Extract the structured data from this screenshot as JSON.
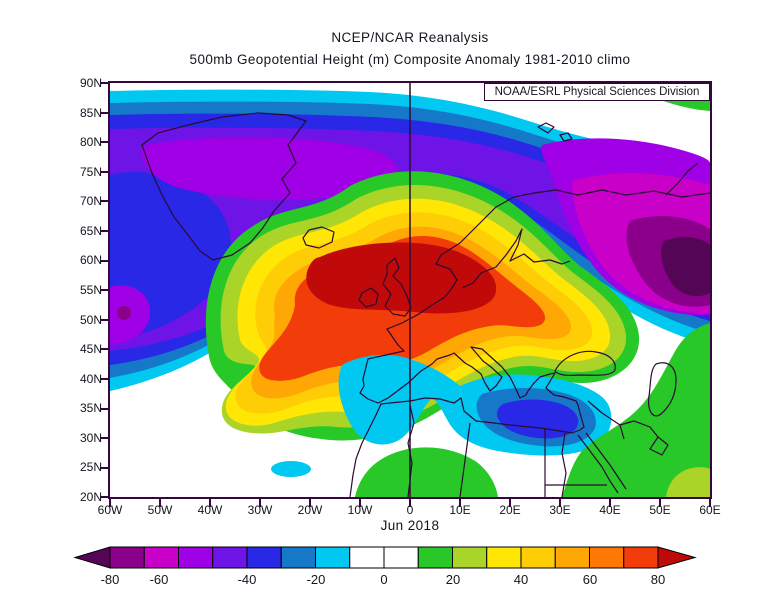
{
  "header": {
    "title": "NCEP/NCAR Reanalysis",
    "subtitle": "500mb Geopotential Height (m) Composite Anomaly 1981-2010 climo",
    "attribution": "NOAA/ESRL Physical Sciences Division"
  },
  "period_label": "Jun 2018",
  "axes": {
    "lat_labels": [
      "90N",
      "85N",
      "80N",
      "75N",
      "70N",
      "65N",
      "60N",
      "55N",
      "50N",
      "45N",
      "40N",
      "35N",
      "30N",
      "25N",
      "20N"
    ],
    "lon_labels": [
      "60W",
      "50W",
      "40W",
      "30W",
      "20W",
      "10W",
      "0",
      "10E",
      "20E",
      "30E",
      "40E",
      "50E",
      "60E"
    ]
  },
  "colorbar": {
    "tick_labels": [
      "-80",
      "-60",
      "-40",
      "-20",
      "0",
      "20",
      "40",
      "60",
      "80"
    ],
    "segment_colors": [
      "#8B008B",
      "#C800C8",
      "#A000E6",
      "#6E14E6",
      "#2828E6",
      "#1678C8",
      "#00C8F0",
      "#FFFFFF",
      "#FFFFFF",
      "#28C828",
      "#AAD428",
      "#FFE605",
      "#FFCD05",
      "#FFA805",
      "#FF7805",
      "#F23C0A"
    ],
    "below_min_color": "#550555",
    "above_max_color": "#C00A0A"
  },
  "chart_data": {
    "type": "filled_contour_map",
    "title": "NCEP/NCAR Reanalysis",
    "subtitle": "500mb Geopotential Height (m) Composite Anomaly 1981-2010 climo",
    "source": "NOAA/ESRL Physical Sciences Division",
    "period": "Jun 2018",
    "variable": "500mb geopotential height composite anomaly",
    "units": "m",
    "climatology": "1981-2010",
    "lat_range_deg": [
      20,
      90
    ],
    "lon_range_deg": [
      -60,
      60
    ],
    "lat_tick_interval_deg": 5,
    "lon_tick_interval_deg": 10,
    "contour_interval_m": 10,
    "color_levels_m": [
      -80,
      -70,
      -60,
      -50,
      -40,
      -30,
      -20,
      -10,
      0,
      10,
      20,
      30,
      40,
      50,
      60,
      70,
      80
    ],
    "palette_low_to_high": [
      "#550555",
      "#8B008B",
      "#C800C8",
      "#A000E6",
      "#6E14E6",
      "#2828E6",
      "#1678C8",
      "#00C8F0",
      "#FFFFFF",
      "#FFFFFF",
      "#28C828",
      "#AAD428",
      "#FFE605",
      "#FFCD05",
      "#FFA805",
      "#FF7805",
      "#F23C0A",
      "#C00A0A"
    ],
    "anomaly_features": [
      {
        "feature": "positive anomaly maximum",
        "approx_location": "55N 8W over British Isles / NE Atlantic",
        "approx_value_m": "> +80"
      },
      {
        "feature": "positive ridge southwest lobe",
        "approx_location": "extends SW to ~30N 25W",
        "approx_value_m": "+10 to +70"
      },
      {
        "feature": "positive ridge east tongue",
        "approx_location": "extends E to ~45N 45E across Baltic/Black Sea region",
        "approx_value_m": "+10 to +40"
      },
      {
        "feature": "negative anomaly band",
        "approx_location": "Arctic belt ~70N-85N spanning full map width",
        "approx_value_m": "-40 to -60"
      },
      {
        "feature": "negative anomaly maximum",
        "approx_location": "~57N 55E near right edge (NW Russia/Urals)",
        "approx_value_m": "< -80"
      },
      {
        "feature": "negative anomaly",
        "approx_location": "~35N 20E central Mediterranean",
        "approx_value_m": "-30 to -40"
      },
      {
        "feature": "negative anomaly",
        "approx_location": "~55N 58W at left edge (Labrador Sea)",
        "approx_value_m": "-60 to -70"
      },
      {
        "feature": "weak positive band",
        "approx_location": "North Africa and Middle East ~20N-45N east of 35E",
        "approx_value_m": "+10 to +30"
      }
    ]
  }
}
